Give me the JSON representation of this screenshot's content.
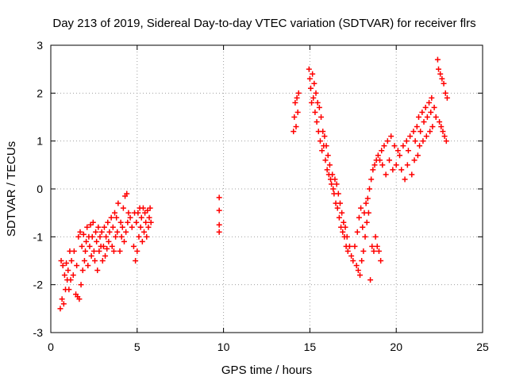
{
  "chart_data": {
    "type": "scatter",
    "title": "Day 213 of 2019, Sidereal Day-to-day VTEC variation (SDTVAR) for receiver flrs",
    "xlabel": "GPS time / hours",
    "ylabel": "SDTVAR / TECUs",
    "xlim": [
      0,
      25
    ],
    "ylim": [
      -3,
      3
    ],
    "x_ticks": [
      "0",
      "5",
      "10",
      "15",
      "20",
      "25"
    ],
    "y_ticks": [
      "-3",
      "-2",
      "-1",
      "0",
      "1",
      "2",
      "3"
    ],
    "grid": true,
    "marker": "plus",
    "color": "#ff0000",
    "series": [
      {
        "name": "SDTVAR",
        "points": [
          [
            0.55,
            -2.5
          ],
          [
            0.6,
            -1.5
          ],
          [
            0.65,
            -2.3
          ],
          [
            0.7,
            -1.6
          ],
          [
            0.75,
            -2.4
          ],
          [
            0.8,
            -1.8
          ],
          [
            0.85,
            -2.1
          ],
          [
            0.9,
            -1.55
          ],
          [
            0.95,
            -1.9
          ],
          [
            1.0,
            -1.7
          ],
          [
            1.05,
            -2.1
          ],
          [
            1.1,
            -1.3
          ],
          [
            1.15,
            -1.9
          ],
          [
            1.2,
            -1.5
          ],
          [
            1.3,
            -1.8
          ],
          [
            1.35,
            -1.3
          ],
          [
            1.45,
            -2.2
          ],
          [
            1.5,
            -1.6
          ],
          [
            1.55,
            -2.25
          ],
          [
            1.6,
            -1.0
          ],
          [
            1.65,
            -2.3
          ],
          [
            1.7,
            -0.9
          ],
          [
            1.75,
            -2.0
          ],
          [
            1.8,
            -1.2
          ],
          [
            1.85,
            -1.7
          ],
          [
            1.9,
            -0.95
          ],
          [
            1.95,
            -1.5
          ],
          [
            2.0,
            -1.3
          ],
          [
            2.05,
            -1.1
          ],
          [
            2.1,
            -0.8
          ],
          [
            2.15,
            -1.6
          ],
          [
            2.2,
            -1.0
          ],
          [
            2.25,
            -1.2
          ],
          [
            2.3,
            -0.75
          ],
          [
            2.35,
            -1.4
          ],
          [
            2.4,
            -1.0
          ],
          [
            2.45,
            -0.7
          ],
          [
            2.5,
            -1.3
          ],
          [
            2.55,
            -1.5
          ],
          [
            2.6,
            -0.9
          ],
          [
            2.65,
            -1.1
          ],
          [
            2.7,
            -1.7
          ],
          [
            2.75,
            -0.8
          ],
          [
            2.8,
            -1.3
          ],
          [
            2.85,
            -1.0
          ],
          [
            2.9,
            -1.2
          ],
          [
            2.95,
            -0.9
          ],
          [
            3.0,
            -1.5
          ],
          [
            3.05,
            -1.2
          ],
          [
            3.1,
            -0.8
          ],
          [
            3.15,
            -1.4
          ],
          [
            3.2,
            -1.0
          ],
          [
            3.25,
            -1.25
          ],
          [
            3.3,
            -0.7
          ],
          [
            3.35,
            -1.1
          ],
          [
            3.4,
            -0.9
          ],
          [
            3.5,
            -0.6
          ],
          [
            3.55,
            -1.2
          ],
          [
            3.6,
            -0.8
          ],
          [
            3.65,
            -1.3
          ],
          [
            3.7,
            -0.5
          ],
          [
            3.75,
            -1.0
          ],
          [
            3.8,
            -0.6
          ],
          [
            3.85,
            -0.9
          ],
          [
            3.9,
            -0.3
          ],
          [
            4.0,
            -1.3
          ],
          [
            4.05,
            -0.7
          ],
          [
            4.1,
            -1.0
          ],
          [
            4.15,
            -0.8
          ],
          [
            4.2,
            -0.4
          ],
          [
            4.25,
            -1.1
          ],
          [
            4.3,
            -0.15
          ],
          [
            4.35,
            -0.9
          ],
          [
            4.4,
            -0.1
          ],
          [
            4.45,
            -0.7
          ],
          [
            4.5,
            -0.5
          ],
          [
            4.6,
            -0.6
          ],
          [
            4.7,
            -0.8
          ],
          [
            4.8,
            -1.2
          ],
          [
            4.85,
            -0.5
          ],
          [
            4.9,
            -1.5
          ],
          [
            4.95,
            -0.7
          ],
          [
            5.0,
            -1.3
          ],
          [
            5.05,
            -0.5
          ],
          [
            5.1,
            -1.0
          ],
          [
            5.15,
            -0.4
          ],
          [
            5.2,
            -0.8
          ],
          [
            5.25,
            -0.6
          ],
          [
            5.3,
            -1.1
          ],
          [
            5.35,
            -0.4
          ],
          [
            5.4,
            -0.9
          ],
          [
            5.45,
            -0.5
          ],
          [
            5.5,
            -0.7
          ],
          [
            5.55,
            -1.0
          ],
          [
            5.6,
            -0.45
          ],
          [
            5.65,
            -0.8
          ],
          [
            5.7,
            -0.6
          ],
          [
            5.75,
            -0.4
          ],
          [
            5.8,
            -0.7
          ],
          [
            9.75,
            -0.18
          ],
          [
            9.75,
            -0.45
          ],
          [
            9.75,
            -0.75
          ],
          [
            9.75,
            -0.9
          ],
          [
            14.05,
            1.2
          ],
          [
            14.1,
            1.5
          ],
          [
            14.15,
            1.8
          ],
          [
            14.2,
            1.3
          ],
          [
            14.25,
            1.9
          ],
          [
            14.3,
            1.6
          ],
          [
            14.35,
            2.0
          ],
          [
            14.95,
            2.5
          ],
          [
            15.0,
            2.3
          ],
          [
            15.05,
            2.1
          ],
          [
            15.1,
            1.8
          ],
          [
            15.15,
            2.4
          ],
          [
            15.2,
            1.9
          ],
          [
            15.25,
            2.2
          ],
          [
            15.3,
            1.6
          ],
          [
            15.35,
            2.0
          ],
          [
            15.4,
            1.4
          ],
          [
            15.45,
            1.8
          ],
          [
            15.5,
            1.2
          ],
          [
            15.55,
            1.7
          ],
          [
            15.6,
            1.0
          ],
          [
            15.65,
            1.5
          ],
          [
            15.7,
            0.8
          ],
          [
            15.75,
            1.2
          ],
          [
            15.8,
            0.9
          ],
          [
            15.85,
            1.1
          ],
          [
            15.9,
            0.6
          ],
          [
            15.95,
            0.9
          ],
          [
            16.0,
            0.4
          ],
          [
            16.05,
            0.7
          ],
          [
            16.1,
            0.3
          ],
          [
            16.15,
            0.5
          ],
          [
            16.2,
            0.2
          ],
          [
            16.25,
            0.1
          ],
          [
            16.3,
            0.3
          ],
          [
            16.35,
            0.0
          ],
          [
            16.4,
            -0.1
          ],
          [
            16.45,
            0.2
          ],
          [
            16.5,
            -0.3
          ],
          [
            16.55,
            0.1
          ],
          [
            16.6,
            -0.4
          ],
          [
            16.65,
            -0.1
          ],
          [
            16.7,
            -0.6
          ],
          [
            16.75,
            -0.3
          ],
          [
            16.8,
            -0.8
          ],
          [
            16.85,
            -0.5
          ],
          [
            16.9,
            -0.9
          ],
          [
            16.95,
            -0.7
          ],
          [
            17.0,
            -1.0
          ],
          [
            17.05,
            -0.8
          ],
          [
            17.1,
            -1.2
          ],
          [
            17.15,
            -1.0
          ],
          [
            17.2,
            -1.3
          ],
          [
            17.3,
            -1.2
          ],
          [
            17.4,
            -1.4
          ],
          [
            17.5,
            -1.5
          ],
          [
            17.6,
            -1.2
          ],
          [
            17.7,
            -1.6
          ],
          [
            17.75,
            -0.9
          ],
          [
            17.8,
            -1.7
          ],
          [
            17.85,
            -0.6
          ],
          [
            17.9,
            -1.8
          ],
          [
            17.95,
            -0.4
          ],
          [
            18.0,
            -1.5
          ],
          [
            18.05,
            -0.8
          ],
          [
            18.1,
            -1.3
          ],
          [
            18.15,
            -0.5
          ],
          [
            18.2,
            -1.0
          ],
          [
            18.25,
            -0.3
          ],
          [
            18.3,
            -0.7
          ],
          [
            18.35,
            -0.2
          ],
          [
            18.4,
            -0.5
          ],
          [
            18.45,
            0.0
          ],
          [
            18.5,
            -1.9
          ],
          [
            18.55,
            0.2
          ],
          [
            18.6,
            -1.2
          ],
          [
            18.65,
            0.4
          ],
          [
            18.7,
            -1.3
          ],
          [
            18.75,
            0.5
          ],
          [
            18.8,
            -1.0
          ],
          [
            18.85,
            0.6
          ],
          [
            18.9,
            -1.2
          ],
          [
            18.95,
            0.7
          ],
          [
            19.0,
            -1.3
          ],
          [
            19.05,
            0.6
          ],
          [
            19.1,
            -1.5
          ],
          [
            19.15,
            0.8
          ],
          [
            19.2,
            0.5
          ],
          [
            19.3,
            0.9
          ],
          [
            19.4,
            0.3
          ],
          [
            19.5,
            1.0
          ],
          [
            19.6,
            0.6
          ],
          [
            19.7,
            1.1
          ],
          [
            19.8,
            0.4
          ],
          [
            19.9,
            0.9
          ],
          [
            20.0,
            0.5
          ],
          [
            20.1,
            0.8
          ],
          [
            20.2,
            0.7
          ],
          [
            20.3,
            0.4
          ],
          [
            20.4,
            0.9
          ],
          [
            20.5,
            0.2
          ],
          [
            20.6,
            1.0
          ],
          [
            20.65,
            0.5
          ],
          [
            20.7,
            0.8
          ],
          [
            20.8,
            1.1
          ],
          [
            20.9,
            0.3
          ],
          [
            21.0,
            1.2
          ],
          [
            21.05,
            0.6
          ],
          [
            21.1,
            1.0
          ],
          [
            21.2,
            1.3
          ],
          [
            21.25,
            0.7
          ],
          [
            21.3,
            1.5
          ],
          [
            21.35,
            0.9
          ],
          [
            21.4,
            1.2
          ],
          [
            21.5,
            1.6
          ],
          [
            21.55,
            1.0
          ],
          [
            21.6,
            1.4
          ],
          [
            21.7,
            1.7
          ],
          [
            21.75,
            1.1
          ],
          [
            21.8,
            1.5
          ],
          [
            21.9,
            1.8
          ],
          [
            21.95,
            1.2
          ],
          [
            22.0,
            1.6
          ],
          [
            22.05,
            1.9
          ],
          [
            22.1,
            1.3
          ],
          [
            22.2,
            1.7
          ],
          [
            22.3,
            1.5
          ],
          [
            22.4,
            2.7
          ],
          [
            22.45,
            2.5
          ],
          [
            22.5,
            1.4
          ],
          [
            22.55,
            2.4
          ],
          [
            22.6,
            1.3
          ],
          [
            22.65,
            2.3
          ],
          [
            22.7,
            1.2
          ],
          [
            22.75,
            2.2
          ],
          [
            22.8,
            1.1
          ],
          [
            22.85,
            2.0
          ],
          [
            22.9,
            1.0
          ],
          [
            22.95,
            1.9
          ]
        ]
      }
    ]
  }
}
